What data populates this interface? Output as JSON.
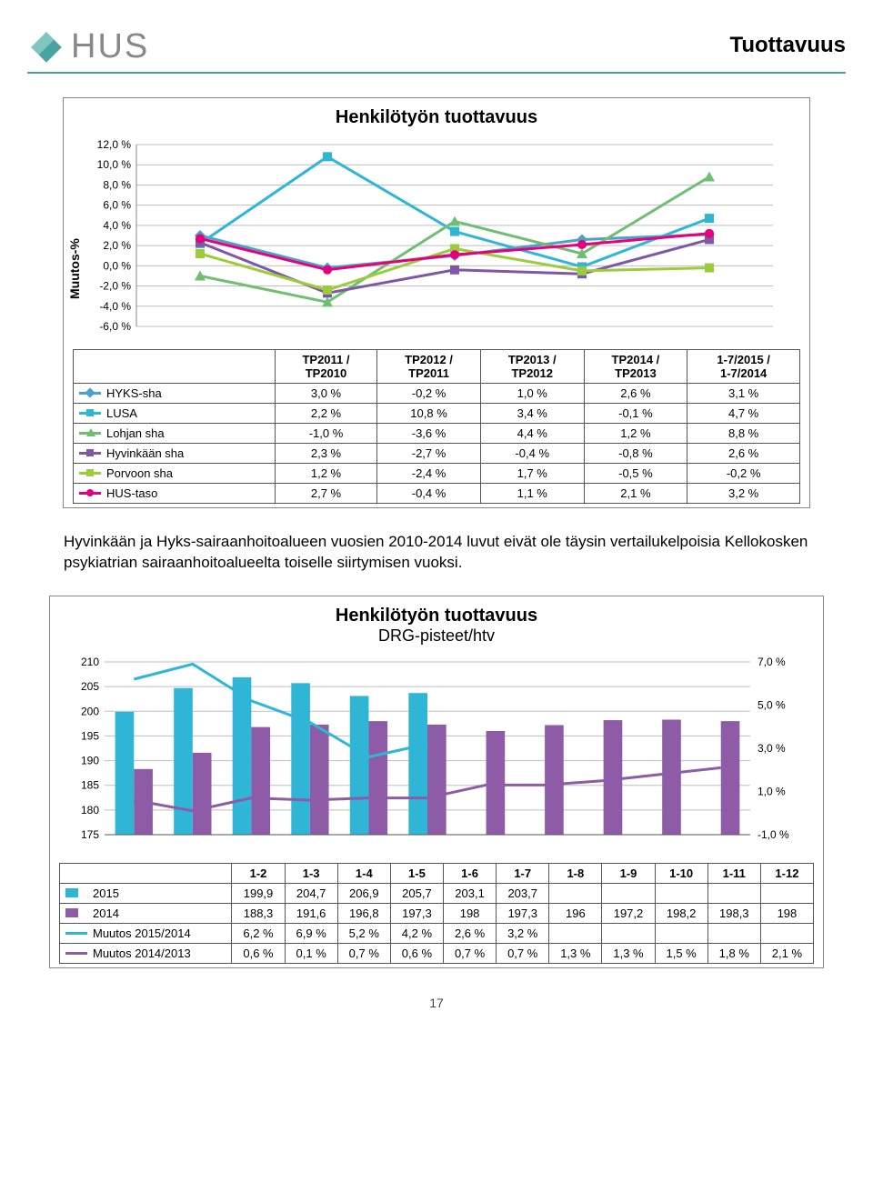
{
  "page": {
    "logo_text": "HUS",
    "title": "Tuottavuus",
    "footer": "17"
  },
  "chart1": {
    "title": "Henkilötyön tuottavuus",
    "ylabel": "Muutos-%",
    "ylim": [
      -6,
      12
    ],
    "ytick_step": 2,
    "ytick_labels": [
      "-6,0 %",
      "-4,0 %",
      "-2,0 %",
      "0,0 %",
      "2,0 %",
      "4,0 %",
      "6,0 %",
      "8,0 %",
      "10,0 %",
      "12,0 %"
    ],
    "x_labels": [
      "TP2011 / TP2010",
      "TP2012 / TP2011",
      "TP2013 / TP2012",
      "TP2014 / TP2013",
      "1-7/2015 / 1-7/2014"
    ],
    "grid_color": "#bfbfbf",
    "background": "#ffffff",
    "series": [
      {
        "name": "HYKS-sha",
        "color": "#4aa3c7",
        "marker": "diamond",
        "values": [
          3.0,
          -0.2,
          1.0,
          2.6,
          3.1
        ],
        "labels": [
          "3,0 %",
          "-0,2 %",
          "1,0 %",
          "2,6 %",
          "3,1 %"
        ]
      },
      {
        "name": "LUSA",
        "color": "#2fb6d6",
        "marker": "square",
        "values": [
          2.2,
          10.8,
          3.4,
          -0.1,
          4.7
        ],
        "labels": [
          "2,2 %",
          "10,8 %",
          "3,4 %",
          "-0,1 %",
          "4,7 %"
        ]
      },
      {
        "name": "Lohjan sha",
        "color": "#6fbf73",
        "marker": "triangle",
        "values": [
          -1.0,
          -3.6,
          4.4,
          1.2,
          8.8
        ],
        "labels": [
          "-1,0 %",
          "-3,6 %",
          "4,4 %",
          "1,2 %",
          "8,8 %"
        ]
      },
      {
        "name": "Hyvinkään sha",
        "color": "#7e57a7",
        "marker": "square",
        "values": [
          2.3,
          -2.7,
          -0.4,
          -0.8,
          2.6
        ],
        "labels": [
          "2,3 %",
          "-2,7 %",
          "-0,4 %",
          "-0,8 %",
          "2,6 %"
        ]
      },
      {
        "name": "Porvoon sha",
        "color": "#9ccc3c",
        "marker": "square",
        "values": [
          1.2,
          -2.4,
          1.7,
          -0.5,
          -0.2
        ],
        "labels": [
          "1,2 %",
          "-2,4 %",
          "1,7 %",
          "-0,5 %",
          "-0,2 %"
        ]
      },
      {
        "name": "HUS-taso",
        "color": "#e6007e",
        "marker": "circle",
        "values": [
          2.7,
          -0.4,
          1.1,
          2.1,
          3.2
        ],
        "labels": [
          "2,7 %",
          "-0,4 %",
          "1,1 %",
          "2,1 %",
          "3,2 %"
        ]
      }
    ]
  },
  "body_text": "Hyvinkään ja Hyks-sairaanhoitoalueen vuosien 2010-2014 luvut eivät ole täysin vertailukelpoisia Kellokosken psykiatrian sairaanhoitoalueelta toiselle siirtymisen vuoksi.",
  "chart2": {
    "title": "Henkilötyön tuottavuus",
    "subtitle": "DRG-pisteet/htv",
    "y1_lim": [
      175,
      210
    ],
    "y1_step": 5,
    "y1_labels": [
      "175",
      "180",
      "185",
      "190",
      "195",
      "200",
      "205",
      "210"
    ],
    "y2_lim": [
      -1,
      7
    ],
    "y2_step": 2,
    "y2_labels": [
      "-1,0 %",
      "1,0 %",
      "3,0 %",
      "5,0 %",
      "7,0 %"
    ],
    "x_labels": [
      "1-2",
      "1-3",
      "1-4",
      "1-5",
      "1-6",
      "1-7",
      "1-8",
      "1-9",
      "1-10",
      "1-11",
      "1-12"
    ],
    "grid_color": "#bfbfbf",
    "colors": {
      "bar2015": "#2fb6d6",
      "bar2014": "#8e5ba6",
      "line1": "#2fb6d6",
      "line2": "#8e5ba6"
    },
    "rows": [
      {
        "name": "2015",
        "type": "bar",
        "color": "#2fb6d6",
        "values": [
          199.9,
          204.7,
          206.9,
          205.7,
          203.1,
          203.7,
          null,
          null,
          null,
          null,
          null
        ],
        "labels": [
          "199,9",
          "204,7",
          "206,9",
          "205,7",
          "203,1",
          "203,7",
          "",
          "",
          "",
          "",
          ""
        ]
      },
      {
        "name": "2014",
        "type": "bar",
        "color": "#8e5ba6",
        "values": [
          188.3,
          191.6,
          196.8,
          197.3,
          198,
          197.3,
          196,
          197.2,
          198.2,
          198.3,
          198
        ],
        "labels": [
          "188,3",
          "191,6",
          "196,8",
          "197,3",
          "198",
          "197,3",
          "196",
          "197,2",
          "198,2",
          "198,3",
          "198"
        ]
      },
      {
        "name": "Muutos 2015/2014",
        "type": "line",
        "color": "#2fb6d6",
        "values": [
          6.2,
          6.9,
          5.2,
          4.2,
          2.6,
          3.2,
          null,
          null,
          null,
          null,
          null
        ],
        "labels": [
          "6,2 %",
          "6,9 %",
          "5,2 %",
          "4,2 %",
          "2,6 %",
          "3,2 %",
          "",
          "",
          "",
          "",
          ""
        ]
      },
      {
        "name": "Muutos 2014/2013",
        "type": "line",
        "color": "#8e5ba6",
        "values": [
          0.6,
          0.1,
          0.7,
          0.6,
          0.7,
          0.7,
          1.3,
          1.3,
          1.5,
          1.8,
          2.1
        ],
        "labels": [
          "0,6 %",
          "0,1 %",
          "0,7 %",
          "0,6 %",
          "0,7 %",
          "0,7 %",
          "1,3 %",
          "1,3 %",
          "1,5 %",
          "1,8 %",
          "2,1 %"
        ]
      }
    ]
  }
}
